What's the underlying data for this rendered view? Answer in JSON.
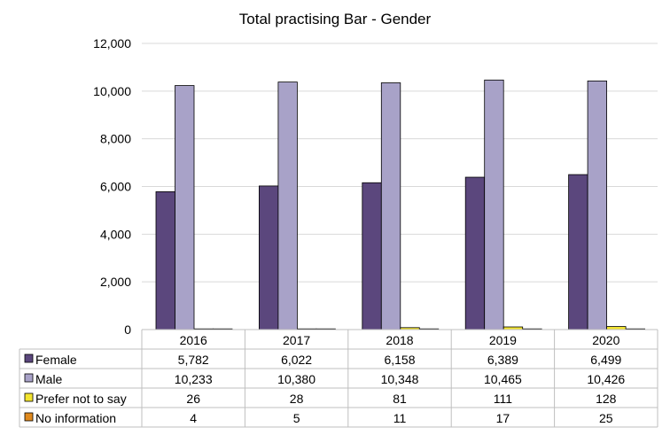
{
  "chart_data": {
    "type": "bar",
    "title": "Total practising Bar - Gender",
    "categories": [
      "2016",
      "2017",
      "2018",
      "2019",
      "2020"
    ],
    "series": [
      {
        "name": "Female",
        "color": "#5b477d",
        "values": [
          5782,
          6022,
          6158,
          6389,
          6499
        ],
        "labels": [
          "5,782",
          "6,022",
          "6,158",
          "6,389",
          "6,499"
        ]
      },
      {
        "name": "Male",
        "color": "#a8a2c8",
        "values": [
          10233,
          10380,
          10348,
          10465,
          10426
        ],
        "labels": [
          "10,233",
          "10,380",
          "10,348",
          "10,465",
          "10,426"
        ]
      },
      {
        "name": "Prefer not to say",
        "color": "#f3e42f",
        "values": [
          26,
          28,
          81,
          111,
          128
        ],
        "labels": [
          "26",
          "28",
          "81",
          "111",
          "128"
        ]
      },
      {
        "name": "No information",
        "color": "#e08a1e",
        "values": [
          4,
          5,
          11,
          17,
          25
        ],
        "labels": [
          "4",
          "5",
          "11",
          "17",
          "25"
        ]
      }
    ],
    "ylim": [
      0,
      12000
    ],
    "yticks": [
      0,
      2000,
      4000,
      6000,
      8000,
      10000,
      12000
    ],
    "ytick_labels": [
      "0",
      "2,000",
      "4,000",
      "6,000",
      "8,000",
      "10,000",
      "12,000"
    ],
    "grid": true,
    "legend": "data table below chart"
  }
}
